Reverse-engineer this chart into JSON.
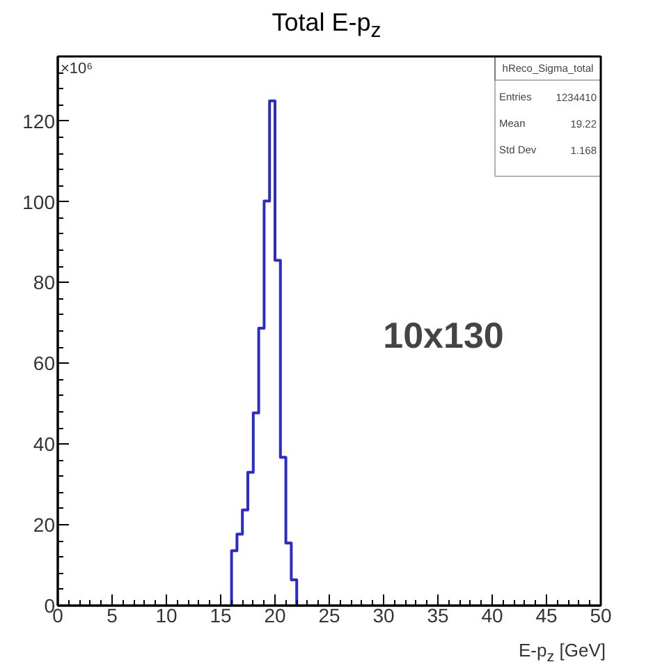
{
  "chart_data": {
    "type": "histogram",
    "title": "Total E-p$_{z}$",
    "xlabel": "E-p$_{z}$ [GeV]",
    "ylabel": "×10⁶",
    "bins": [
      16,
      16.5,
      17,
      17.5,
      18,
      18.5,
      19,
      19.5,
      20,
      20.5,
      21,
      21.5,
      22
    ],
    "values": [
      13.6,
      17.7,
      23.7,
      33,
      47.7,
      68.7,
      100.2,
      125,
      85.5,
      36.7,
      15.5,
      6.4
    ],
    "color": "#2b2bc8",
    "xlim": [
      0,
      50
    ],
    "xticks": [
      0,
      5,
      10,
      15,
      20,
      25,
      30,
      35,
      40,
      45,
      50
    ],
    "ylim": [
      0,
      136
    ],
    "yticks": [
      0,
      20,
      40,
      60,
      80,
      100,
      120
    ],
    "grid": false,
    "annotations": [
      "hReco_Sigma_total",
      "Entries",
      "1234410",
      "Mean",
      "19.22",
      "Std Dev",
      "1.168",
      "10x130"
    ]
  }
}
